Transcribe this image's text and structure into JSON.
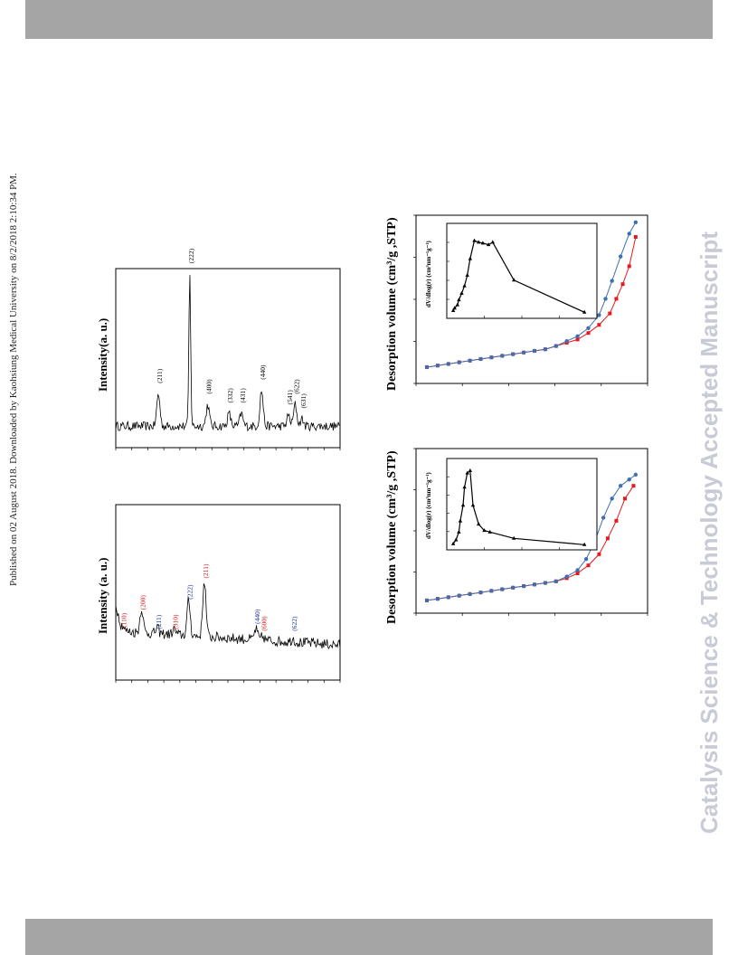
{
  "page": {
    "publication_note": "Published on 02 August 2018. Downloaded by Kaohsiung Medical University on 8/2/2018 2:10:34 PM.",
    "watermark": "Catalysis Science & Technology Accepted Manuscript"
  },
  "chart_data": [
    {
      "type": "line",
      "id": "xrd_top",
      "ylabel": "Intensity(a. u.)",
      "peaks": [
        {
          "label": "(211)",
          "x": 0.19,
          "h": 0.18,
          "color": "#000000"
        },
        {
          "label": "(222)",
          "x": 0.33,
          "h": 0.85,
          "color": "#000000"
        },
        {
          "label": "(400)",
          "x": 0.41,
          "h": 0.12,
          "color": "#000000"
        },
        {
          "label": "(332)",
          "x": 0.505,
          "h": 0.07,
          "color": "#000000"
        },
        {
          "label": "(431)",
          "x": 0.56,
          "h": 0.07,
          "color": "#000000"
        },
        {
          "label": "(440)",
          "x": 0.65,
          "h": 0.2,
          "color": "#000000"
        },
        {
          "label": "(541)",
          "x": 0.77,
          "h": 0.06,
          "color": "#000000"
        },
        {
          "label": "(622)",
          "x": 0.8,
          "h": 0.12,
          "color": "#000000"
        },
        {
          "label": "(631)",
          "x": 0.83,
          "h": 0.04,
          "color": "#000000"
        }
      ]
    },
    {
      "type": "line",
      "id": "xrd_bottom",
      "ylabel": "Intensity (a. u.)",
      "peaks": [
        {
          "label": "(110)",
          "x": 0.03,
          "h": 0.04,
          "color": "#d01818"
        },
        {
          "label": "(200)",
          "x": 0.115,
          "h": 0.14,
          "color": "#d01818"
        },
        {
          "label": "(211)",
          "x": 0.185,
          "h": 0.03,
          "color": "#1a2f9a"
        },
        {
          "label": "(310)",
          "x": 0.26,
          "h": 0.03,
          "color": "#d01818"
        },
        {
          "label": "(222)",
          "x": 0.325,
          "h": 0.2,
          "color": "#1a2f9a"
        },
        {
          "label": "(211)",
          "x": 0.395,
          "h": 0.32,
          "color": "#d01818"
        },
        {
          "label": "(440)",
          "x": 0.625,
          "h": 0.06,
          "color": "#1a2f9a"
        },
        {
          "label": "(600)",
          "x": 0.655,
          "h": 0.02,
          "color": "#d01818"
        },
        {
          "label": "(622)",
          "x": 0.79,
          "h": 0.02,
          "color": "#1a2f9a"
        }
      ]
    },
    {
      "type": "line",
      "id": "isotherm_top",
      "ylabel": "Desorption volume (cm³/g ,STP)",
      "inset_ylabel": "dV/dlog(r)   (cm³nm⁻¹g⁻¹)",
      "series": [
        {
          "name": "",
          "color": "#e8191e",
          "marker": "square"
        },
        {
          "name": "",
          "color": "#3f6fb0",
          "marker": "circle"
        }
      ],
      "adsorption": [
        [
          0.0,
          0.1
        ],
        [
          0.05,
          0.11
        ],
        [
          0.1,
          0.12
        ],
        [
          0.15,
          0.13
        ],
        [
          0.2,
          0.14
        ],
        [
          0.25,
          0.15
        ],
        [
          0.3,
          0.16
        ],
        [
          0.35,
          0.17
        ],
        [
          0.4,
          0.18
        ],
        [
          0.45,
          0.19
        ],
        [
          0.5,
          0.2
        ],
        [
          0.55,
          0.21
        ],
        [
          0.6,
          0.23
        ],
        [
          0.65,
          0.25
        ],
        [
          0.7,
          0.27
        ],
        [
          0.75,
          0.31
        ],
        [
          0.8,
          0.36
        ],
        [
          0.85,
          0.43
        ],
        [
          0.88,
          0.52
        ],
        [
          0.91,
          0.61
        ],
        [
          0.94,
          0.72
        ],
        [
          0.97,
          0.9
        ]
      ],
      "desorption": [
        [
          0.0,
          0.1
        ],
        [
          0.05,
          0.11
        ],
        [
          0.1,
          0.12
        ],
        [
          0.15,
          0.13
        ],
        [
          0.2,
          0.14
        ],
        [
          0.25,
          0.15
        ],
        [
          0.3,
          0.16
        ],
        [
          0.35,
          0.17
        ],
        [
          0.4,
          0.18
        ],
        [
          0.45,
          0.19
        ],
        [
          0.5,
          0.2
        ],
        [
          0.55,
          0.21
        ],
        [
          0.6,
          0.23
        ],
        [
          0.65,
          0.26
        ],
        [
          0.7,
          0.29
        ],
        [
          0.75,
          0.34
        ],
        [
          0.8,
          0.42
        ],
        [
          0.83,
          0.52
        ],
        [
          0.86,
          0.63
        ],
        [
          0.9,
          0.78
        ],
        [
          0.94,
          0.92
        ],
        [
          0.97,
          0.99
        ]
      ],
      "psd": [
        [
          0.02,
          0.05
        ],
        [
          0.03,
          0.08
        ],
        [
          0.05,
          0.12
        ],
        [
          0.06,
          0.18
        ],
        [
          0.08,
          0.26
        ],
        [
          0.1,
          0.35
        ],
        [
          0.12,
          0.48
        ],
        [
          0.14,
          0.68
        ],
        [
          0.17,
          0.9
        ],
        [
          0.2,
          0.88
        ],
        [
          0.23,
          0.87
        ],
        [
          0.27,
          0.85
        ],
        [
          0.3,
          0.88
        ],
        [
          0.45,
          0.42
        ],
        [
          0.95,
          0.03
        ]
      ]
    },
    {
      "type": "line",
      "id": "isotherm_bottom",
      "ylabel": "Desorption volume (cm³/g ,STP)",
      "inset_ylabel": "dV/dlog(r)   (cm³nm⁻¹g⁻¹)",
      "series": [
        {
          "name": "",
          "color": "#e8191e",
          "marker": "square"
        },
        {
          "name": "",
          "color": "#3f6fb0",
          "marker": "circle"
        }
      ],
      "adsorption": [
        [
          0.0,
          0.08
        ],
        [
          0.05,
          0.09
        ],
        [
          0.1,
          0.1
        ],
        [
          0.15,
          0.11
        ],
        [
          0.2,
          0.12
        ],
        [
          0.25,
          0.13
        ],
        [
          0.3,
          0.14
        ],
        [
          0.35,
          0.15
        ],
        [
          0.4,
          0.16
        ],
        [
          0.45,
          0.17
        ],
        [
          0.5,
          0.18
        ],
        [
          0.55,
          0.19
        ],
        [
          0.6,
          0.2
        ],
        [
          0.65,
          0.22
        ],
        [
          0.7,
          0.25
        ],
        [
          0.75,
          0.3
        ],
        [
          0.8,
          0.37
        ],
        [
          0.84,
          0.47
        ],
        [
          0.88,
          0.58
        ],
        [
          0.92,
          0.72
        ],
        [
          0.96,
          0.8
        ]
      ],
      "desorption": [
        [
          0.0,
          0.08
        ],
        [
          0.05,
          0.09
        ],
        [
          0.1,
          0.1
        ],
        [
          0.15,
          0.11
        ],
        [
          0.2,
          0.12
        ],
        [
          0.25,
          0.13
        ],
        [
          0.3,
          0.14
        ],
        [
          0.35,
          0.15
        ],
        [
          0.4,
          0.16
        ],
        [
          0.45,
          0.17
        ],
        [
          0.5,
          0.18
        ],
        [
          0.55,
          0.19
        ],
        [
          0.6,
          0.2
        ],
        [
          0.65,
          0.23
        ],
        [
          0.7,
          0.27
        ],
        [
          0.74,
          0.34
        ],
        [
          0.78,
          0.45
        ],
        [
          0.82,
          0.6
        ],
        [
          0.86,
          0.72
        ],
        [
          0.9,
          0.8
        ],
        [
          0.94,
          0.84
        ],
        [
          0.97,
          0.87
        ]
      ],
      "psd": [
        [
          0.02,
          0.03
        ],
        [
          0.04,
          0.08
        ],
        [
          0.06,
          0.18
        ],
        [
          0.07,
          0.32
        ],
        [
          0.09,
          0.52
        ],
        [
          0.1,
          0.75
        ],
        [
          0.12,
          0.93
        ],
        [
          0.14,
          0.96
        ],
        [
          0.16,
          0.52
        ],
        [
          0.2,
          0.28
        ],
        [
          0.24,
          0.2
        ],
        [
          0.28,
          0.18
        ],
        [
          0.45,
          0.1
        ],
        [
          0.95,
          0.02
        ]
      ]
    }
  ]
}
